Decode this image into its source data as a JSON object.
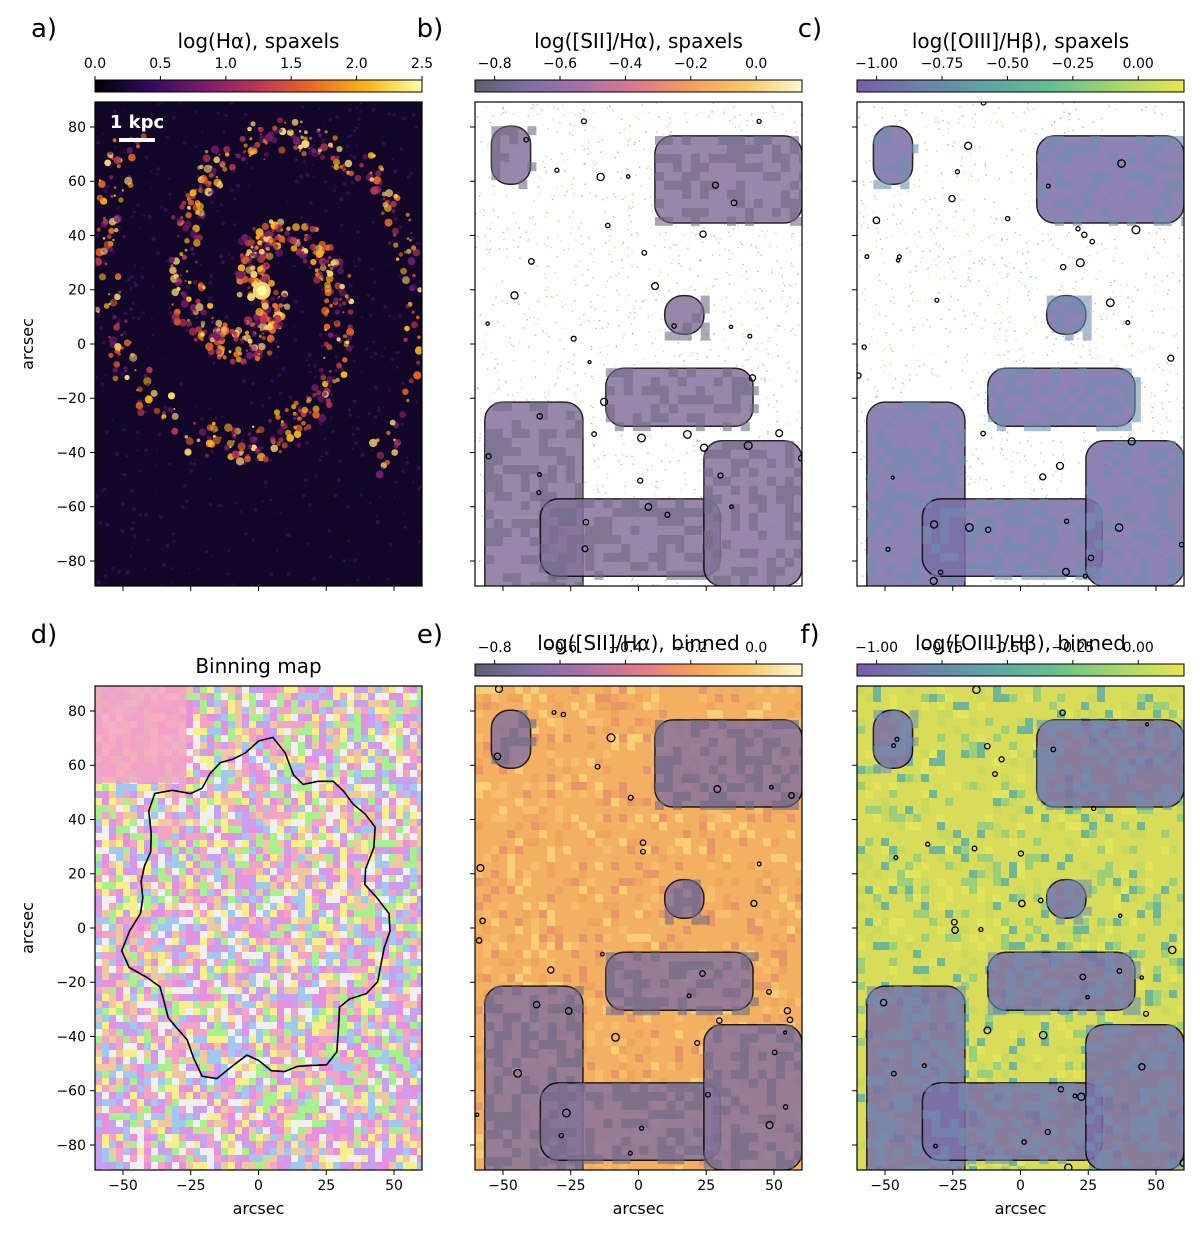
{
  "figure": {
    "panels": [
      {
        "id": "a",
        "label": "a)",
        "title": "log(Hα), spaxels",
        "colorbar_ticks": [
          "0.0",
          "0.5",
          "1.0",
          "1.5",
          "2.0",
          "2.5"
        ],
        "cmap": "inferno",
        "scalebar_label": "1 kpc"
      },
      {
        "id": "b",
        "label": "b)",
        "title": "log([SII]/Hα), spaxels",
        "colorbar_ticks": [
          "−0.8",
          "−0.6",
          "−0.4",
          "−0.2",
          "0.0"
        ],
        "cmap": "sii"
      },
      {
        "id": "c",
        "label": "c)",
        "title": "log([OIII]/Hβ), spaxels",
        "colorbar_ticks": [
          "−1.00",
          "−0.75",
          "−0.50",
          "−0.25",
          "0.00"
        ],
        "cmap": "viridis"
      },
      {
        "id": "d",
        "label": "d)",
        "title": "Binning map"
      },
      {
        "id": "e",
        "label": "e)",
        "title": "log([SII]/Hα), binned",
        "colorbar_ticks": [
          "−0.8",
          "−0.6",
          "−0.4",
          "−0.2",
          "0.0"
        ],
        "cmap": "sii"
      },
      {
        "id": "f",
        "label": "f)",
        "title": "log([OIII]/Hβ), binned",
        "colorbar_ticks": [
          "−1.00",
          "−0.75",
          "−0.50",
          "−0.25",
          "0.00"
        ],
        "cmap": "viridis"
      }
    ],
    "y_ticks": [
      "80",
      "60",
      "40",
      "20",
      "0",
      "−20",
      "−40",
      "−60",
      "−80"
    ],
    "x_ticks": [
      "−50",
      "−25",
      "0",
      "25",
      "50"
    ],
    "ylabel": "arcsec",
    "xlabel": "arcsec"
  },
  "colors": {
    "inferno": [
      "#000004",
      "#320a5e",
      "#781c6d",
      "#bc3754",
      "#ed6925",
      "#fbb61a",
      "#fcffa4"
    ],
    "sii": [
      "#5e5e6e",
      "#7f6fa6",
      "#a971a8",
      "#de7a8c",
      "#f5a05a",
      "#f9c86c",
      "#fdf8cf"
    ],
    "viridis": [
      "#7b5ba8",
      "#6b83a8",
      "#5fa3a5",
      "#66c08e",
      "#a5d86c",
      "#e9e64c"
    ],
    "contour": "#000000"
  }
}
